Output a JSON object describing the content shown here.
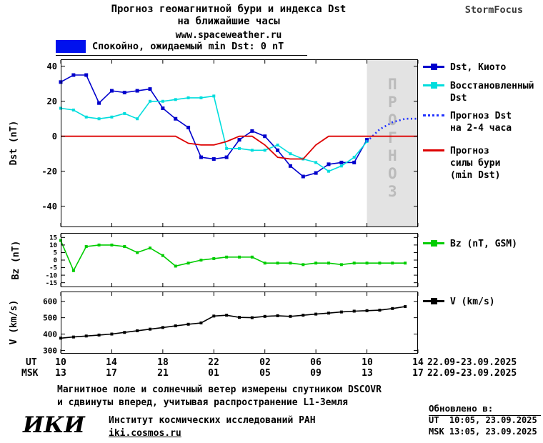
{
  "header": {
    "title_line1": "Прогноз геомагнитной бури и индекса Dst",
    "title_line2": "на ближайшие часы",
    "site_link": "www.spaceweather.ru",
    "brand": "StormFocus"
  },
  "status_banner": {
    "text": "Спокойно, ожидаемый min Dst: 0 nT",
    "box_color": "#0011ee"
  },
  "chart_data": [
    {
      "type": "line",
      "ylabel": "Dst (nT)",
      "ylim": [
        -52,
        44
      ],
      "yticks": [
        40,
        20,
        0,
        -20,
        -40
      ],
      "xlim": [
        0,
        28
      ],
      "xticks": [
        0,
        4,
        8,
        12,
        16,
        20,
        24,
        28
      ],
      "forecast_region": {
        "x": [
          24,
          28
        ],
        "label": "ПРОГНОЗ",
        "fill": "#e3e3e3",
        "label_color": "#bbbbbb"
      },
      "series": [
        {
          "name": "Dst, Киото",
          "color": "#0000cc",
          "marker": "square",
          "msize": 5,
          "x_start": 0,
          "values": [
            31,
            35,
            35,
            19,
            26,
            25,
            26,
            27,
            16,
            10,
            5,
            -12,
            -13,
            -12,
            -2,
            3,
            0,
            -8,
            -17,
            -23,
            -21,
            -16,
            -15,
            -15,
            -2
          ]
        },
        {
          "name": "Восстановленный Dst",
          "color": "#00dddd",
          "marker": "square",
          "msize": 4,
          "x_start": 0,
          "values": [
            16,
            15,
            11,
            10,
            11,
            13,
            10,
            20,
            20,
            21,
            22,
            22,
            23,
            -7,
            -7,
            -8,
            -8,
            -5,
            -10,
            -13,
            -15,
            -20,
            -17,
            -12,
            -3
          ]
        },
        {
          "name": "Прогноз Dst на 2-4 часа",
          "color": "#2233ff",
          "style": "dotted",
          "width": 2.6,
          "x_start": 24,
          "values": [
            -3,
            4,
            8,
            10,
            10
          ]
        },
        {
          "name": "Прогноз силы бури (min Dst)",
          "color": "#dd0000",
          "width": 1.8,
          "x_start": 0,
          "values": [
            0,
            0,
            0,
            0,
            0,
            0,
            0,
            0,
            0,
            0,
            -4,
            -5,
            -5,
            -3,
            0,
            0,
            -5,
            -12,
            -13,
            -13,
            -5,
            0,
            0,
            0,
            0,
            0,
            0,
            0,
            0
          ]
        }
      ]
    },
    {
      "type": "line",
      "ylabel": "Bz (nT)",
      "ylim": [
        -18,
        18
      ],
      "yticks": [
        15,
        10,
        5,
        0,
        -5,
        -10,
        -15
      ],
      "xlim": [
        0,
        28
      ],
      "xticks": [
        0,
        4,
        8,
        12,
        16,
        20,
        24,
        28
      ],
      "series": [
        {
          "name": "Bz (nT, GSM)",
          "color": "#00cc00",
          "marker": "square",
          "msize": 4,
          "x_start": 0,
          "values": [
            13,
            -7,
            9,
            10,
            10,
            9,
            5,
            8,
            3,
            -4,
            -2,
            0,
            1,
            2,
            2,
            2,
            -2,
            -2,
            -2,
            -3,
            -2,
            -2,
            -3,
            -2,
            -2,
            -2,
            -2,
            -2
          ]
        }
      ]
    },
    {
      "type": "line",
      "ylabel": "V (km/s)",
      "ylim": [
        280,
        660
      ],
      "yticks": [
        600,
        500,
        400,
        300
      ],
      "xlim": [
        0,
        28
      ],
      "xticks": [
        0,
        4,
        8,
        12,
        16,
        20,
        24,
        28
      ],
      "series": [
        {
          "name": "V (km/s)",
          "color": "#000000",
          "marker": "square",
          "msize": 4,
          "x_start": 0,
          "values": [
            375,
            382,
            388,
            394,
            400,
            410,
            420,
            430,
            440,
            450,
            460,
            468,
            510,
            515,
            502,
            500,
            508,
            512,
            508,
            515,
            522,
            528,
            535,
            540,
            543,
            546,
            556,
            568
          ]
        }
      ]
    }
  ],
  "xaxis": {
    "ut_label": "UT",
    "msk_label": "MSK",
    "ut_ticks": [
      "10",
      "14",
      "18",
      "22",
      "02",
      "06",
      "10",
      "14"
    ],
    "msk_ticks": [
      "13",
      "17",
      "21",
      "01",
      "05",
      "09",
      "13",
      "17"
    ],
    "ut_date_range": "22.09-23.09.2025",
    "msk_date_range": "22.09-23.09.2025"
  },
  "legends": {
    "main": [
      {
        "lines": [
          "Dst, Киото"
        ]
      },
      {
        "lines": [
          "Восстановленный",
          "Dst"
        ]
      },
      {
        "lines": [
          "Прогноз Dst",
          "на 2-4 часа"
        ]
      },
      {
        "lines": [
          "Прогноз",
          "силы бури",
          "(min Dst)"
        ]
      }
    ],
    "bz": {
      "label": "Bz (nT, GSM)"
    },
    "v": {
      "label": "V (km/s)"
    }
  },
  "footer": {
    "note_line1": "Магнитное поле и солнечный ветер измерены спутником DSCOVR",
    "note_line2": "и сдвинуты вперед, учитывая распространение L1-Земля",
    "logo": "ИКИ",
    "institute": "Институт космических исследований РАН",
    "site_link": "iki.cosmos.ru",
    "updated_label": "Обновлено в:",
    "updated_ut": "UT  10:05, 23.09.2025",
    "updated_msk": "MSK 13:05, 23.09.2025"
  }
}
